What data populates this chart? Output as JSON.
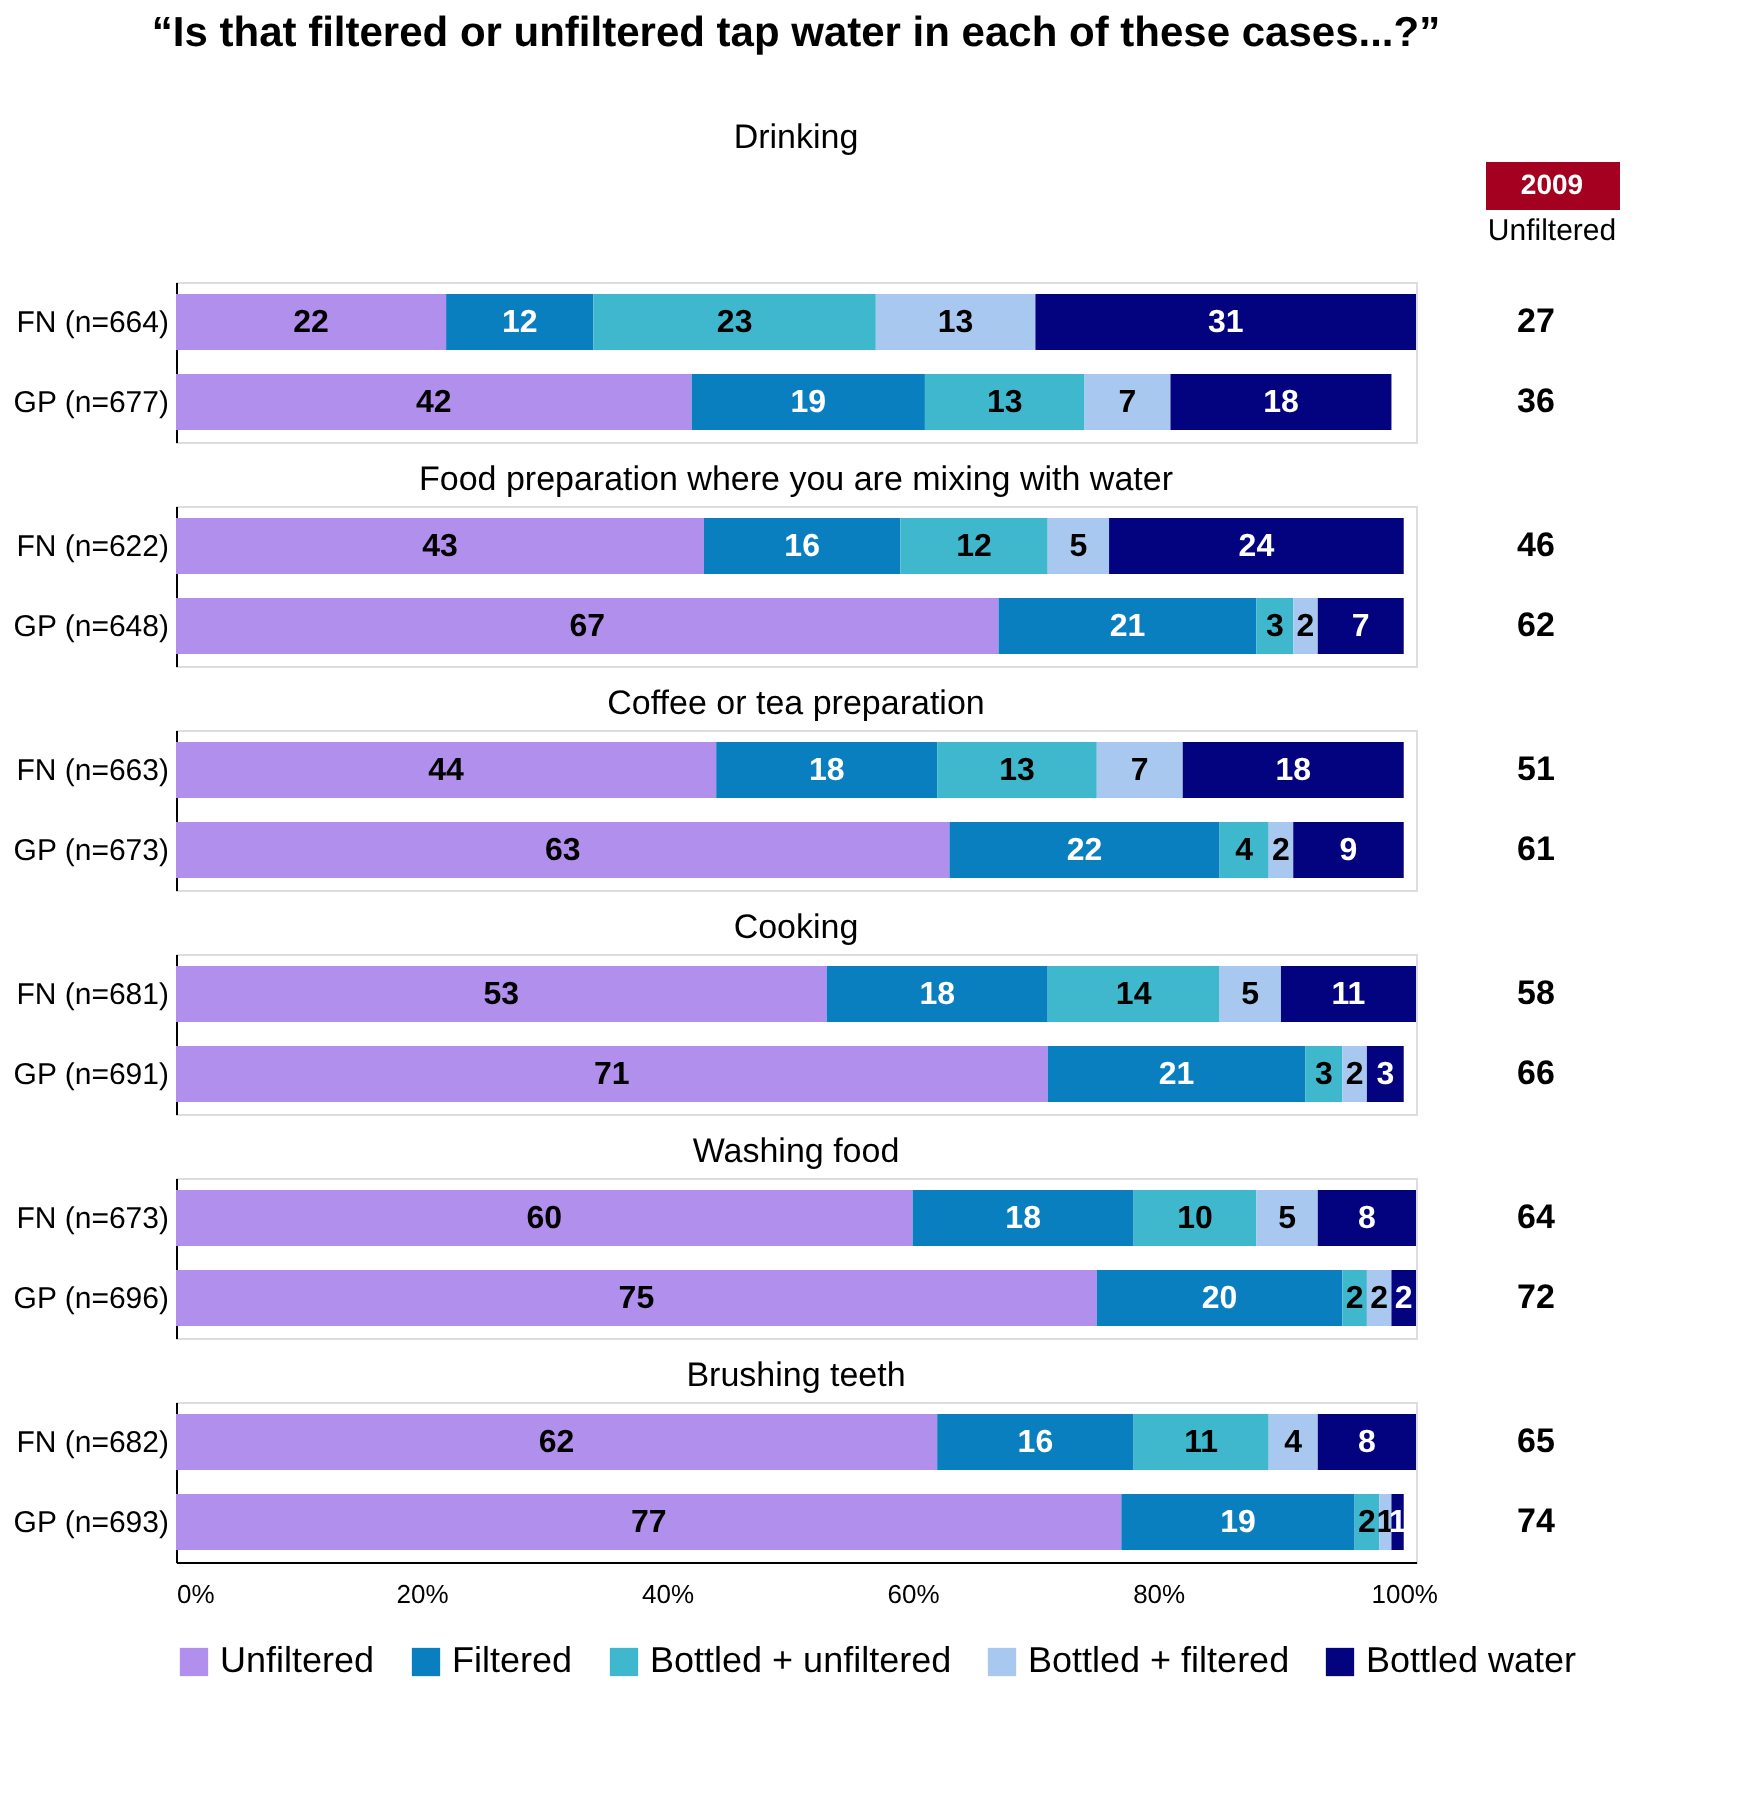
{
  "chart_data": [
    {
      "type": "bar",
      "orientation": "horizontal",
      "stacked": true,
      "data_labels": true,
      "legend": false,
      "grid": false,
      "tick_labels": "y",
      "title": "“Is that filtered or unfiltered tap water in each of these cases...?”",
      "subtitle": "Drinking",
      "categories": [
        "FN (n=664)",
        "GP (n=677)"
      ],
      "series": [
        {
          "color": "#b18fec",
          "values": [
            22,
            42
          ]
        },
        {
          "color": "#0a7fc0",
          "values": [
            12,
            19
          ]
        },
        {
          "color": "#3fb8cd",
          "values": [
            23,
            13
          ]
        },
        {
          "color": "#a8c8ef",
          "values": [
            13,
            7
          ]
        },
        {
          "color": "#03037f",
          "values": [
            31,
            18
          ]
        }
      ],
      "xlim": [
        0,
        101
      ],
      "annotations": [
        "2009",
        "Unfiltered",
        "27",
        "36"
      ]
    },
    {
      "type": "bar",
      "orientation": "horizontal",
      "stacked": true,
      "data_labels": true,
      "legend": false,
      "grid": false,
      "tick_labels": "y",
      "subtitle": "Food preparation where you are mixing with water",
      "categories": [
        "FN (n=622)",
        "GP (n=648)"
      ],
      "series": [
        {
          "color": "#b18fec",
          "values": [
            43,
            67
          ]
        },
        {
          "color": "#0a7fc0",
          "values": [
            16,
            21
          ]
        },
        {
          "color": "#3fb8cd",
          "values": [
            12,
            3
          ]
        },
        {
          "color": "#a8c8ef",
          "values": [
            5,
            2
          ]
        },
        {
          "color": "#03037f",
          "values": [
            24,
            7
          ]
        }
      ],
      "xlim": [
        0,
        101
      ],
      "annotations": [
        "46",
        "62"
      ]
    },
    {
      "type": "bar",
      "orientation": "horizontal",
      "stacked": true,
      "data_labels": true,
      "legend": false,
      "grid": false,
      "tick_labels": "y",
      "subtitle": "Coffee or tea preparation",
      "categories": [
        "FN (n=663)",
        "GP (n=673)"
      ],
      "series": [
        {
          "color": "#b18fec",
          "values": [
            44,
            63
          ]
        },
        {
          "color": "#0a7fc0",
          "values": [
            18,
            22
          ]
        },
        {
          "color": "#3fb8cd",
          "values": [
            13,
            4
          ]
        },
        {
          "color": "#a8c8ef",
          "values": [
            7,
            2
          ]
        },
        {
          "color": "#03037f",
          "values": [
            18,
            9
          ]
        }
      ],
      "xlim": [
        0,
        101
      ],
      "annotations": [
        "51",
        "61"
      ]
    },
    {
      "type": "bar",
      "orientation": "horizontal",
      "stacked": true,
      "data_labels": true,
      "legend": false,
      "grid": false,
      "tick_labels": "y",
      "subtitle": "Cooking",
      "categories": [
        "FN (n=681)",
        "GP (n=691)"
      ],
      "series": [
        {
          "color": "#b18fec",
          "values": [
            53,
            71
          ]
        },
        {
          "color": "#0a7fc0",
          "values": [
            18,
            21
          ]
        },
        {
          "color": "#3fb8cd",
          "values": [
            14,
            3
          ]
        },
        {
          "color": "#a8c8ef",
          "values": [
            5,
            2
          ]
        },
        {
          "color": "#03037f",
          "values": [
            11,
            3
          ]
        }
      ],
      "xlim": [
        0,
        101
      ],
      "annotations": [
        "58",
        "66"
      ]
    },
    {
      "type": "bar",
      "orientation": "horizontal",
      "stacked": true,
      "data_labels": true,
      "legend": false,
      "grid": false,
      "tick_labels": "y",
      "subtitle": "Washing food",
      "categories": [
        "FN (n=673)",
        "GP (n=696)"
      ],
      "series": [
        {
          "color": "#b18fec",
          "values": [
            60,
            75
          ]
        },
        {
          "color": "#0a7fc0",
          "values": [
            18,
            20
          ]
        },
        {
          "color": "#3fb8cd",
          "values": [
            10,
            2
          ]
        },
        {
          "color": "#a8c8ef",
          "values": [
            5,
            2
          ]
        },
        {
          "color": "#03037f",
          "values": [
            8,
            2
          ]
        }
      ],
      "xlim": [
        0,
        101
      ],
      "annotations": [
        "64",
        "72"
      ]
    },
    {
      "type": "bar",
      "orientation": "horizontal",
      "stacked": true,
      "data_labels": true,
      "legend": "bottom",
      "grid": false,
      "subtitle": "Brushing teeth",
      "categories": [
        "FN (n=682)",
        "GP (n=693)"
      ],
      "series": [
        {
          "name": "Unfiltered",
          "color": "#b18fec",
          "values": [
            62,
            77
          ]
        },
        {
          "name": "Filtered",
          "color": "#0a7fc0",
          "values": [
            16,
            19
          ]
        },
        {
          "name": "Bottled + unfiltered",
          "color": "#3fb8cd",
          "values": [
            11,
            2
          ]
        },
        {
          "name": "Bottled + filtered",
          "color": "#a8c8ef",
          "values": [
            4,
            1
          ]
        },
        {
          "name": "Bottled water",
          "color": "#03037f",
          "values": [
            8,
            1
          ]
        }
      ],
      "xlim": [
        0,
        101
      ],
      "xticks": [
        {
          "value": 0,
          "label": "0%"
        },
        {
          "value": 20,
          "label": "20%"
        },
        {
          "value": 40,
          "label": "40%"
        },
        {
          "value": 60,
          "label": "60%"
        },
        {
          "value": 80,
          "label": "80%"
        },
        {
          "value": 100,
          "label": "100%"
        }
      ],
      "annotations": [
        "65",
        "74"
      ]
    }
  ]
}
